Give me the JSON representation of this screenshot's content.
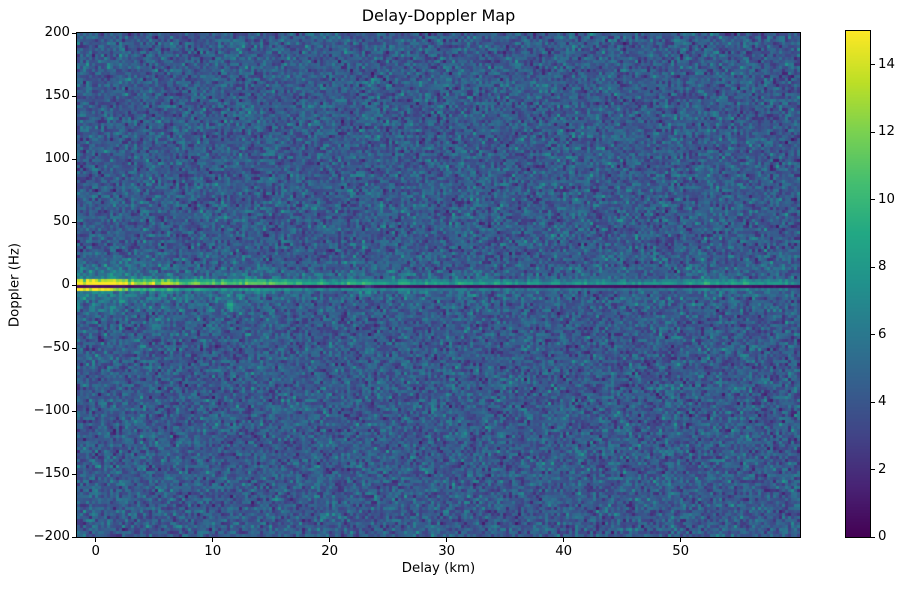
{
  "chart_data": {
    "type": "heatmap",
    "title": "Delay-Doppler Map",
    "xlabel": "Delay (km)",
    "ylabel": "Doppler (Hz)",
    "xlim": [
      -1.6,
      60.2
    ],
    "ylim": [
      -200,
      200
    ],
    "xticks": [
      0,
      10,
      20,
      30,
      40,
      50
    ],
    "yticks": [
      200,
      150,
      100,
      50,
      0,
      -50,
      -100,
      -150,
      -200
    ],
    "grid": false,
    "legend": false,
    "colorbar": {
      "position": "right",
      "vmin": 0,
      "vmax": 15,
      "ticks": [
        0,
        2,
        4,
        6,
        8,
        10,
        12,
        14
      ]
    },
    "colormap": {
      "name": "viridis",
      "stops": [
        [
          0.0,
          68,
          1,
          84
        ],
        [
          0.1,
          72,
          36,
          117
        ],
        [
          0.2,
          65,
          68,
          135
        ],
        [
          0.3,
          53,
          95,
          141
        ],
        [
          0.4,
          42,
          120,
          142
        ],
        [
          0.5,
          33,
          145,
          140
        ],
        [
          0.6,
          34,
          168,
          132
        ],
        [
          0.7,
          68,
          190,
          112
        ],
        [
          0.8,
          122,
          209,
          81
        ],
        [
          0.9,
          189,
          223,
          38
        ],
        [
          1.0,
          253,
          231,
          37
        ]
      ]
    },
    "noise_background": {
      "seed": 42,
      "mean": 4.2,
      "sd": 1.15,
      "min": 1.0,
      "max": 7.8,
      "teal_speckle_prob": 0.02,
      "dark_speckle_prob": 0.02
    },
    "features": {
      "zero_doppler_null_line": {
        "doppler_hz": 0,
        "value": 0.5
      },
      "specular_band": {
        "doppler_hz": 2,
        "peak_value": 15,
        "floor_value": 7.2,
        "decay_km": 14,
        "column_jitter": 0.09,
        "bright_segment": {
          "delay_km": [
            52,
            56.5
          ],
          "boost": 1.3
        }
      },
      "band_glow": {
        "max_doppler_hz": 25,
        "scale": 0.45,
        "falloff_hz": 8
      },
      "near_range_clutter": {
        "max_delay_km": 16,
        "max_doppler_hz": 32,
        "amplitude": 4,
        "delay_falloff_km": 8,
        "doppler_falloff_hz": 14
      },
      "point_echoes": [
        {
          "delay_km": 11.5,
          "doppler_hz": -16,
          "value": 9.5,
          "radius_cells": 1.6
        },
        {
          "delay_km": 18.7,
          "doppler_hz": 61,
          "value": 7.8,
          "radius_cells": 1.2
        },
        {
          "delay_km": 23.3,
          "doppler_hz": -6,
          "value": 8.3,
          "radius_cells": 1.3
        }
      ]
    }
  }
}
